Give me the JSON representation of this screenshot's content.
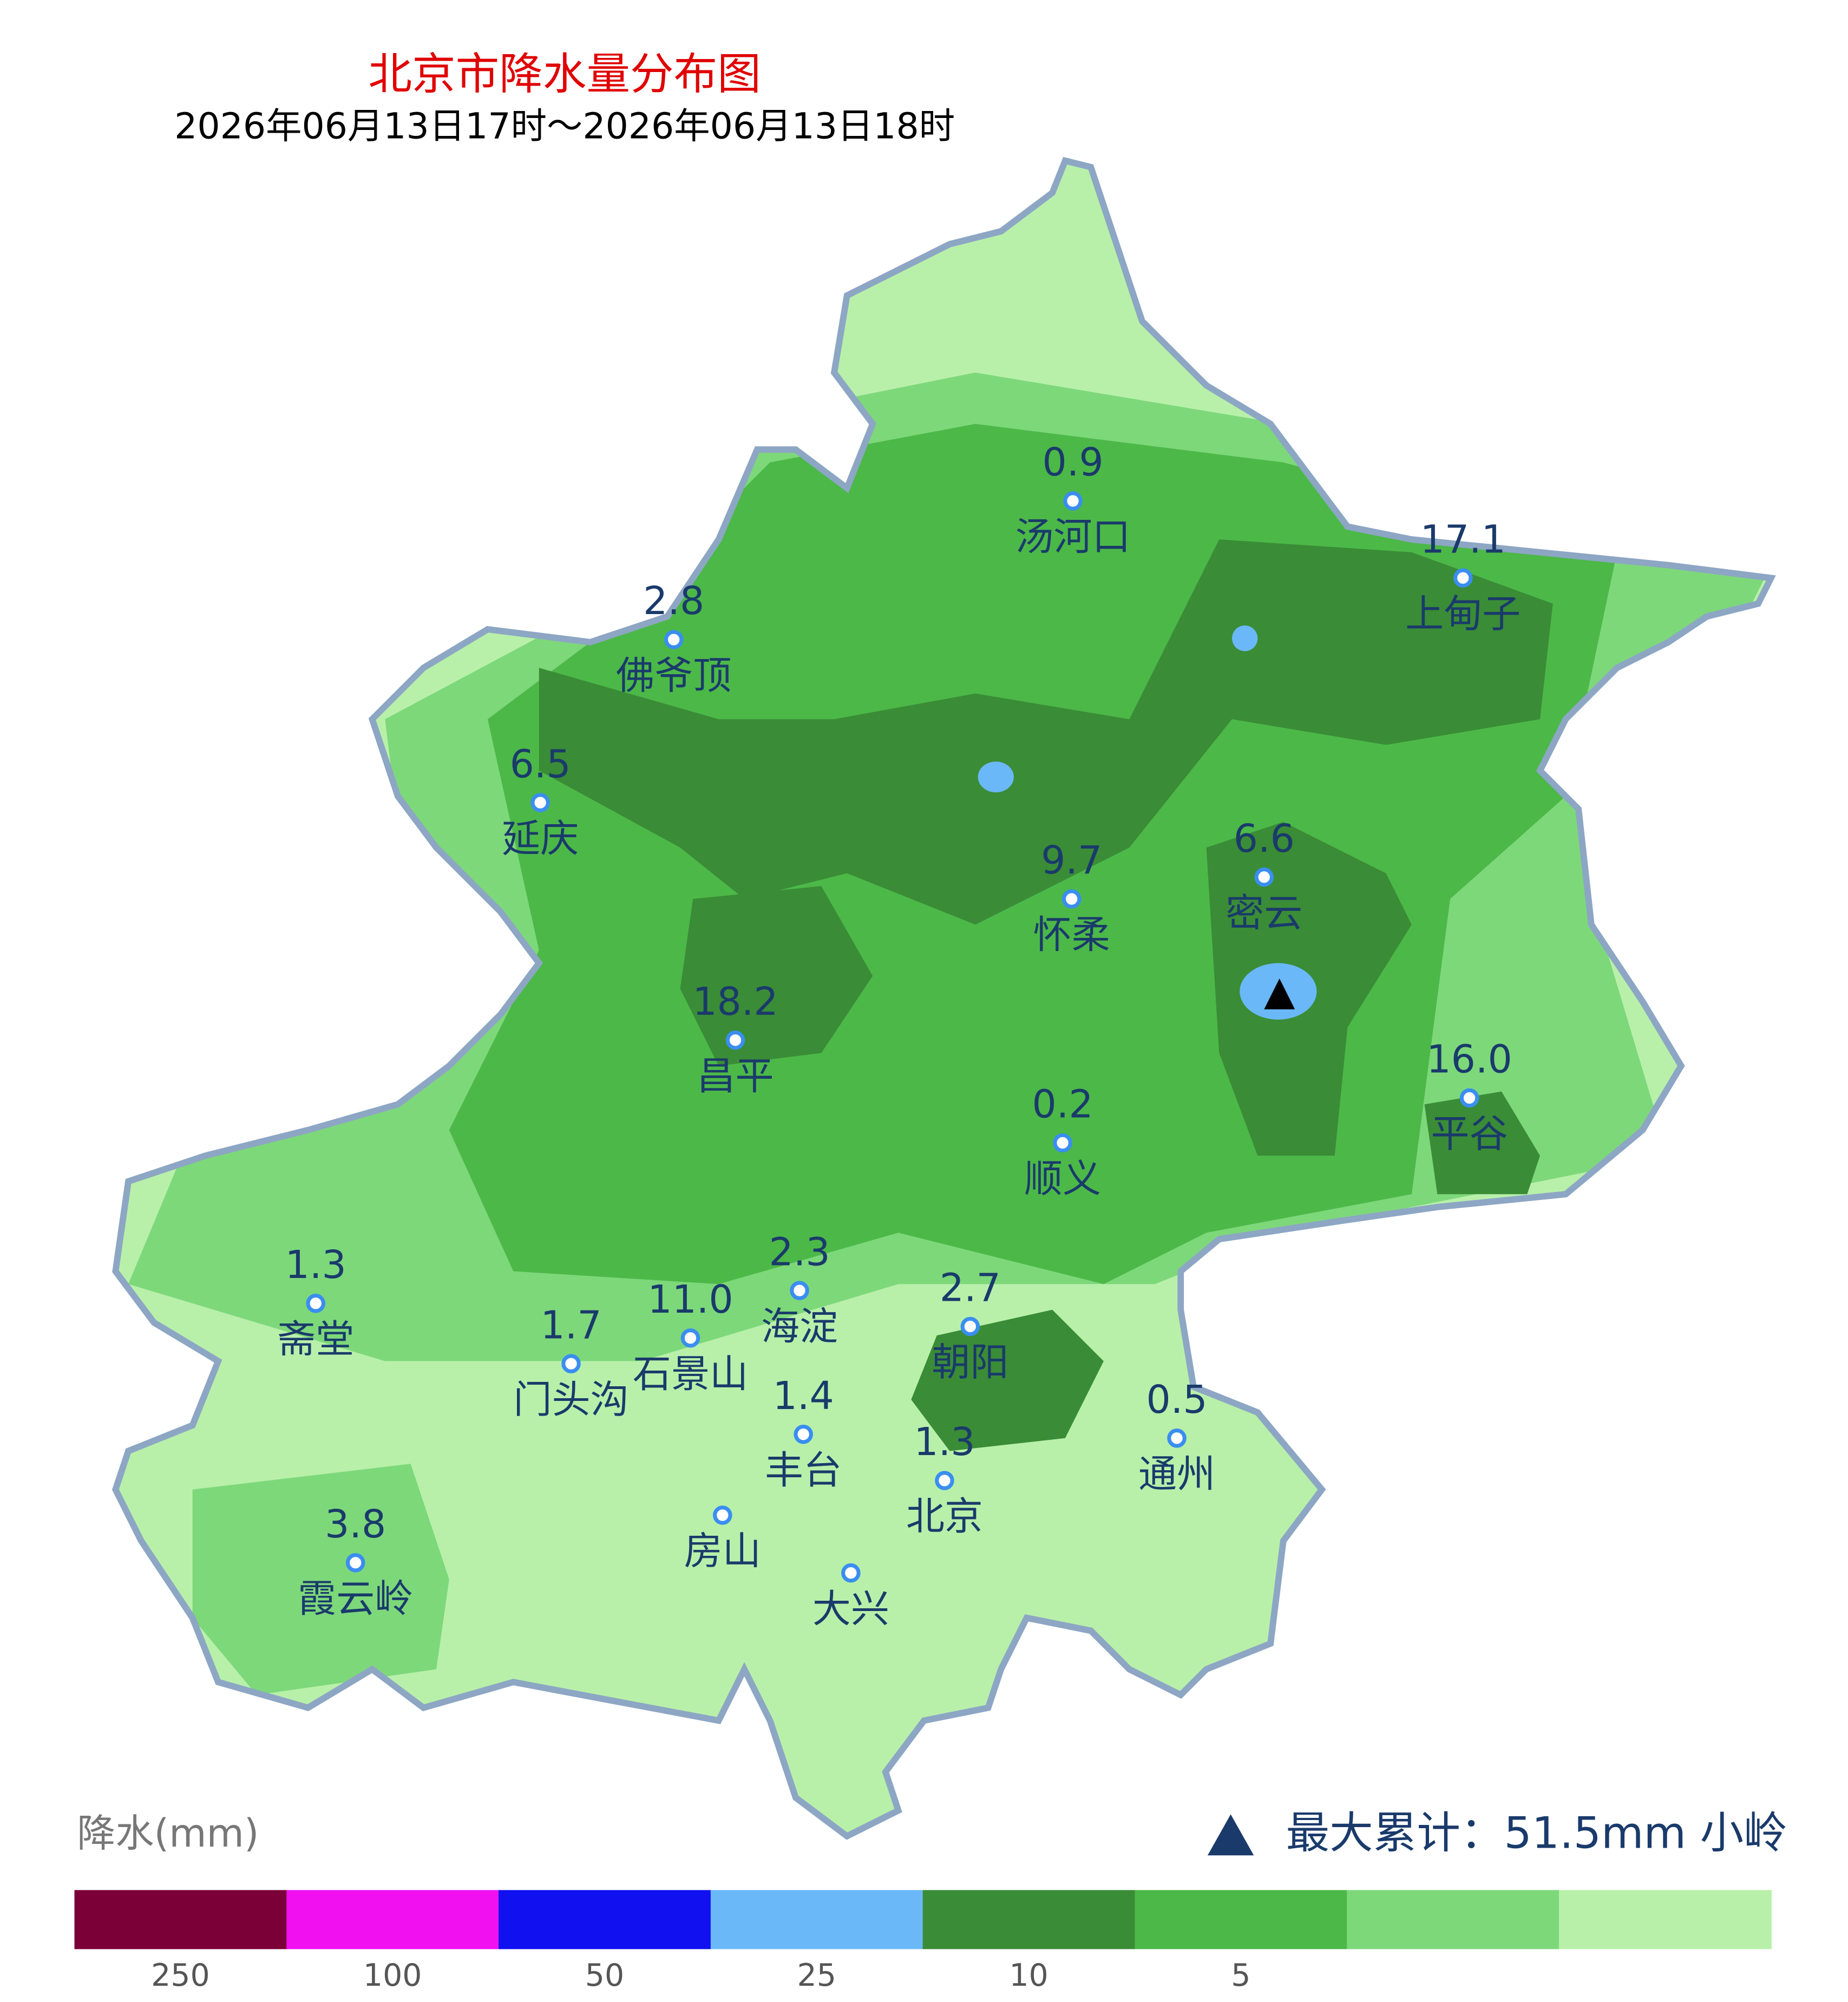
{
  "header": {
    "title": "北京市降水量分布图",
    "subtitle": "2026年06月13日17时～2026年06月13日18时"
  },
  "stations": [
    {
      "name": "汤河口",
      "value": "0.9"
    },
    {
      "name": "上甸子",
      "value": "17.1"
    },
    {
      "name": "佛爷顶",
      "value": "2.8"
    },
    {
      "name": "延庆",
      "value": "6.5"
    },
    {
      "name": "密云",
      "value": "6.6"
    },
    {
      "name": "怀柔",
      "value": "9.7"
    },
    {
      "name": "昌平",
      "value": "18.2"
    },
    {
      "name": "平谷",
      "value": "16.0"
    },
    {
      "name": "顺义",
      "value": "0.2"
    },
    {
      "name": "斋堂",
      "value": "1.3"
    },
    {
      "name": "海淀",
      "value": "2.3"
    },
    {
      "name": "石景山",
      "value": "11.0"
    },
    {
      "name": "门头沟",
      "value": "1.7"
    },
    {
      "name": "朝阳",
      "value": "2.7"
    },
    {
      "name": "通州",
      "value": "0.5"
    },
    {
      "name": "丰台",
      "value": "1.4"
    },
    {
      "name": "北京",
      "value": "1.3"
    },
    {
      "name": "房山"
    },
    {
      "name": "霞云岭",
      "value": "3.8"
    },
    {
      "name": "大兴"
    }
  ],
  "max_note": "最大累计：51.5mm 小岭",
  "legend": {
    "title": "降水(mm)",
    "colors": [
      "#7b0038",
      "#f010f0",
      "#1010f0",
      "#6ab8f8",
      "#3a8c36",
      "#4cb848",
      "#7dd87a",
      "#b8f0aa"
    ],
    "labels": [
      "250",
      "100",
      "50",
      "25",
      "10",
      "5"
    ]
  }
}
